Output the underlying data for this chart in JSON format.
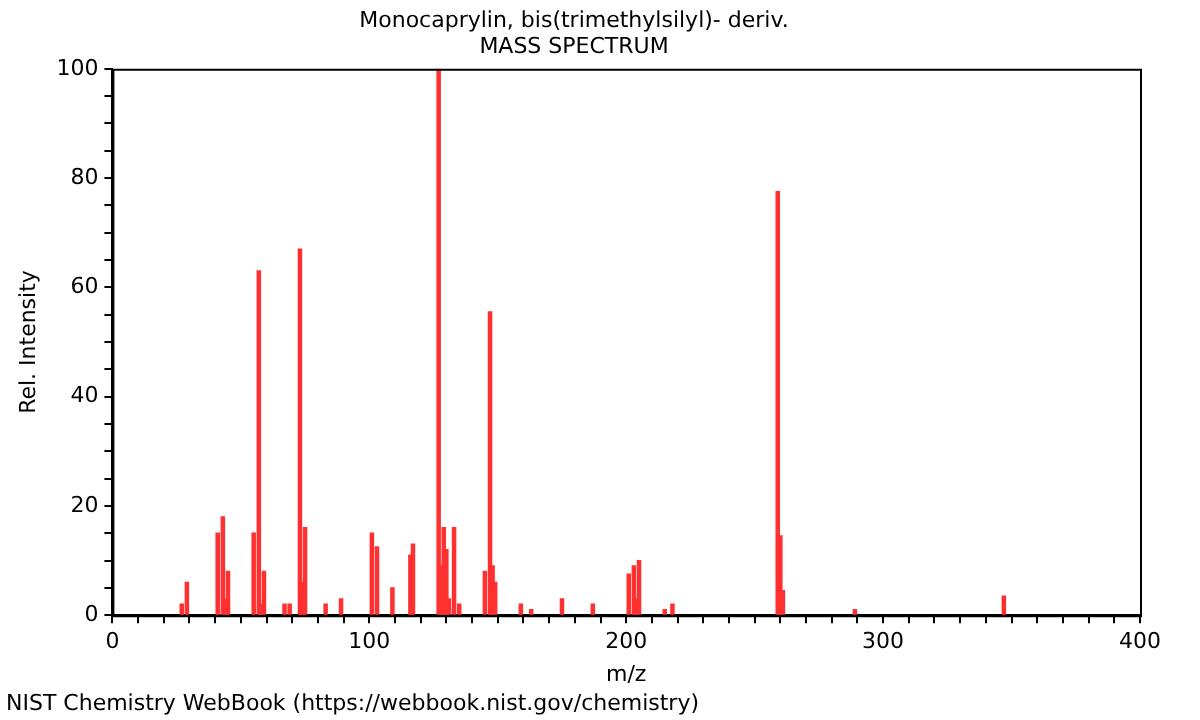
{
  "chart_data": {
    "type": "bar",
    "title": "Monocaprylin, bis(trimethylsilyl)- deriv.",
    "subtitle": "MASS SPECTRUM",
    "xlabel": "m/z",
    "ylabel": "Rel. Intensity",
    "x": [
      27,
      29,
      41,
      43,
      44,
      45,
      55,
      57,
      58,
      59,
      67,
      69,
      73,
      74,
      75,
      83,
      89,
      101,
      103,
      109,
      116,
      117,
      127,
      128,
      129,
      130,
      131,
      133,
      135,
      145,
      147,
      148,
      149,
      159,
      163,
      175,
      187,
      201,
      203,
      204,
      205,
      215,
      218,
      259,
      260,
      261,
      289,
      347
    ],
    "values": [
      2,
      6,
      15,
      18,
      3,
      8,
      15,
      63,
      2,
      8,
      2,
      2,
      67,
      6,
      16,
      2,
      3,
      15,
      12.5,
      5,
      11,
      13,
      100,
      9,
      16,
      12,
      3,
      16,
      2,
      8,
      55.5,
      9,
      6,
      2,
      1,
      3,
      2,
      7.5,
      9,
      3,
      10,
      1,
      2,
      77.5,
      14.5,
      4.5,
      1,
      3.5
    ],
    "color": "#ff3030",
    "xlim": [
      0,
      400
    ],
    "xticks": [
      0,
      {
        "value": 10,
        "label": null
      },
      {
        "value": 20,
        "label": null
      },
      {
        "value": 30,
        "label": null
      },
      {
        "value": 40,
        "label": null
      },
      {
        "value": 50,
        "label": null
      },
      {
        "value": 60,
        "label": null
      },
      {
        "value": 70,
        "label": null
      },
      {
        "value": 80,
        "label": null
      },
      {
        "value": 90,
        "label": null
      },
      100,
      {
        "value": 110,
        "label": null
      },
      {
        "value": 120,
        "label": null
      },
      {
        "value": 130,
        "label": null
      },
      {
        "value": 140,
        "label": null
      },
      {
        "value": 150,
        "label": null
      },
      {
        "value": 160,
        "label": null
      },
      {
        "value": 170,
        "label": null
      },
      {
        "value": 180,
        "label": null
      },
      {
        "value": 190,
        "label": null
      },
      200,
      {
        "value": 210,
        "label": null
      },
      {
        "value": 220,
        "label": null
      },
      {
        "value": 230,
        "label": null
      },
      {
        "value": 240,
        "label": null
      },
      {
        "value": 250,
        "label": null
      },
      {
        "value": 260,
        "label": null
      },
      {
        "value": 270,
        "label": null
      },
      {
        "value": 280,
        "label": null
      },
      {
        "value": 290,
        "label": null
      },
      300,
      {
        "value": 310,
        "label": null
      },
      {
        "value": 320,
        "label": null
      },
      {
        "value": 330,
        "label": null
      },
      {
        "value": 340,
        "label": null
      },
      {
        "value": 350,
        "label": null
      },
      {
        "value": 360,
        "label": null
      },
      {
        "value": 370,
        "label": null
      },
      {
        "value": 380,
        "label": null
      },
      {
        "value": 390,
        "label": null
      },
      400
    ],
    "ylim": [
      0,
      100
    ],
    "yticks": [
      0,
      {
        "value": 5,
        "label": null
      },
      {
        "value": 10,
        "label": null
      },
      {
        "value": 15,
        "label": null
      },
      20,
      {
        "value": 25,
        "label": null
      },
      {
        "value": 30,
        "label": null
      },
      {
        "value": 35,
        "label": null
      },
      40,
      {
        "value": 45,
        "label": null
      },
      {
        "value": 50,
        "label": null
      },
      {
        "value": 55,
        "label": null
      },
      60,
      {
        "value": 65,
        "label": null
      },
      {
        "value": 70,
        "label": null
      },
      {
        "value": 75,
        "label": null
      },
      80,
      {
        "value": 85,
        "label": null
      },
      {
        "value": 90,
        "label": null
      },
      {
        "value": 95,
        "label": null
      },
      100
    ],
    "grid": false,
    "legend": false,
    "annotations": [
      "NIST Chemistry WebBook (https://webbook.nist.gov/chemistry)"
    ]
  }
}
